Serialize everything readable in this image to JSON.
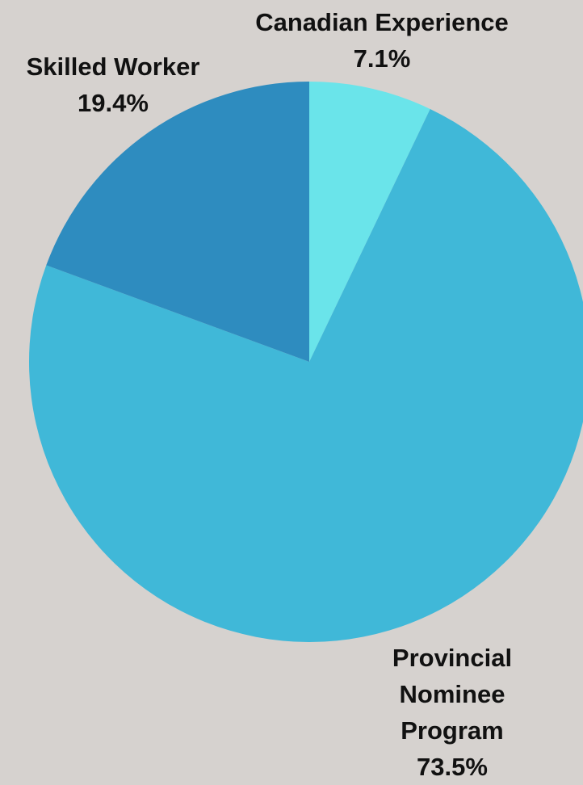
{
  "chart_data": {
    "type": "pie",
    "categories": [
      "Canadian Experience",
      "Provincial Nominee Program",
      "Skilled Worker"
    ],
    "values": [
      7.1,
      73.5,
      19.4
    ],
    "value_labels": [
      "7.1%",
      "73.5%",
      "19.4%"
    ],
    "colors": [
      "#6ae4ea",
      "#40b8d8",
      "#2e8cbf"
    ]
  }
}
